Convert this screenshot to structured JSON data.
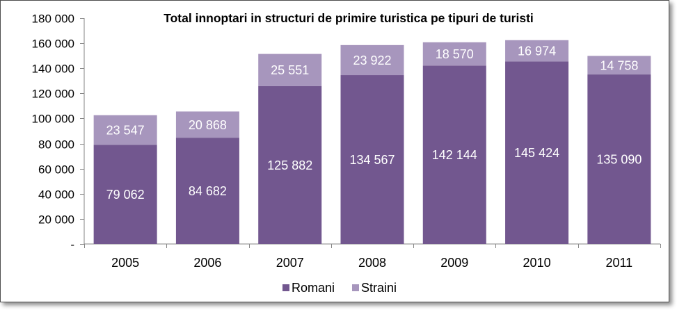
{
  "chart_data": {
    "type": "stacked-bar",
    "title": "Total innoptari in structuri de primire turistica pe tipuri de turisti",
    "categories": [
      "2005",
      "2006",
      "2007",
      "2008",
      "2009",
      "2010",
      "2011"
    ],
    "series": [
      {
        "name": "Romani",
        "color": "#72578f",
        "values": [
          79062,
          84682,
          125882,
          134567,
          142144,
          145424,
          135090
        ],
        "labels": [
          "79 062",
          "84 682",
          "125 882",
          "134 567",
          "142 144",
          "145 424",
          "135 090"
        ]
      },
      {
        "name": "Straini",
        "color": "#a796bd",
        "values": [
          23547,
          20868,
          25551,
          23922,
          18570,
          16974,
          14758
        ],
        "labels": [
          "23 547",
          "20 868",
          "25 551",
          "23 922",
          "18 570",
          "16 974",
          "14 758"
        ]
      }
    ],
    "ylim": [
      0,
      180000
    ],
    "yticks": [
      0,
      20000,
      40000,
      60000,
      80000,
      100000,
      120000,
      140000,
      160000,
      180000
    ],
    "ytick_labels": [
      "-",
      "20 000",
      "40 000",
      "60 000",
      "80 000",
      "100 000",
      "120 000",
      "140 000",
      "160 000",
      "180 000"
    ],
    "grid": false,
    "legend_position": "bottom"
  }
}
